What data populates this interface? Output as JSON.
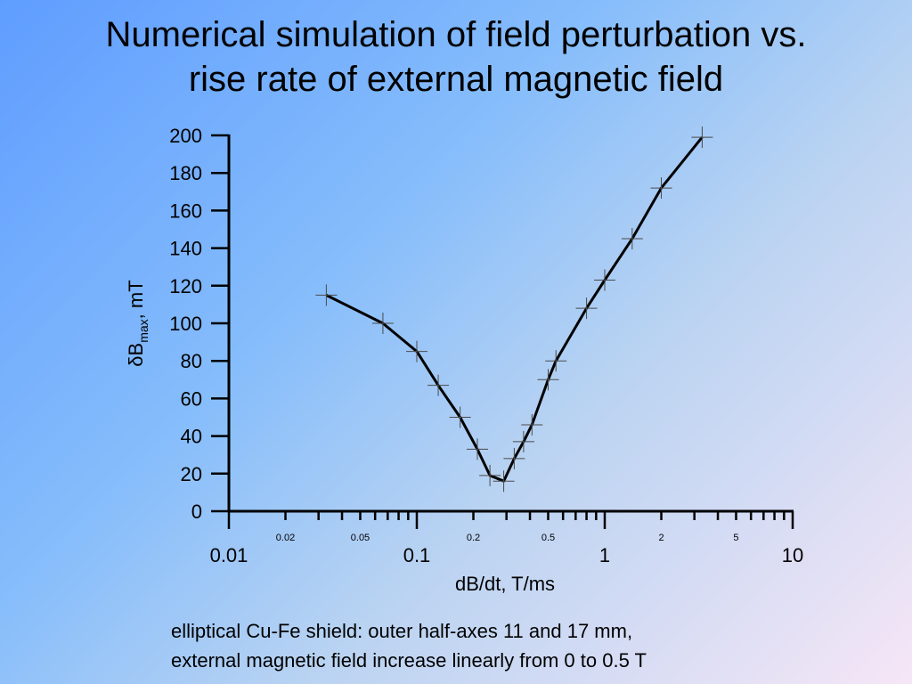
{
  "title": {
    "line1": "Numerical simulation of field perturbation vs.",
    "line2": "rise rate of external magnetic field"
  },
  "caption": {
    "line1": "elliptical Cu-Fe shield: outer half-axes 11 and 17 mm,",
    "line2": "external magnetic field increase linearly from 0 to 0.5 T"
  },
  "chart_data": {
    "type": "line",
    "xscale": "log",
    "xlim": [
      0.01,
      10
    ],
    "ylim": [
      0,
      200
    ],
    "xlabel": "dB/dt, T/ms",
    "ylabel": {
      "prefix": "δB",
      "subscript": "max",
      "suffix": ", mT"
    },
    "y_ticks": [
      "0",
      "20",
      "40",
      "60",
      "80",
      "100",
      "120",
      "140",
      "160",
      "180",
      "200"
    ],
    "x_major_ticks": [
      {
        "value": 0.01,
        "label": "0.01"
      },
      {
        "value": 0.1,
        "label": "0.1"
      },
      {
        "value": 1,
        "label": "1"
      },
      {
        "value": 10,
        "label": "10"
      }
    ],
    "x_minor_labels": [
      {
        "value": 0.02,
        "label": "0.02"
      },
      {
        "value": 0.05,
        "label": "0.05"
      },
      {
        "value": 0.2,
        "label": "0.2"
      },
      {
        "value": 0.5,
        "label": "0.5"
      },
      {
        "value": 2,
        "label": "2"
      },
      {
        "value": 5,
        "label": "5"
      }
    ],
    "series": [
      {
        "color": "#000000",
        "marker": "cross",
        "x": [
          0.033,
          0.066,
          0.1,
          0.13,
          0.17,
          0.21,
          0.245,
          0.29,
          0.33,
          0.37,
          0.41,
          0.5,
          0.55,
          0.8,
          1,
          1.4,
          2,
          3.3
        ],
        "y": [
          115,
          100,
          85,
          67,
          50,
          33,
          19,
          16,
          28,
          37,
          46,
          70,
          80,
          108,
          123,
          145,
          172,
          199
        ]
      }
    ],
    "grid": false,
    "legend": "none"
  }
}
